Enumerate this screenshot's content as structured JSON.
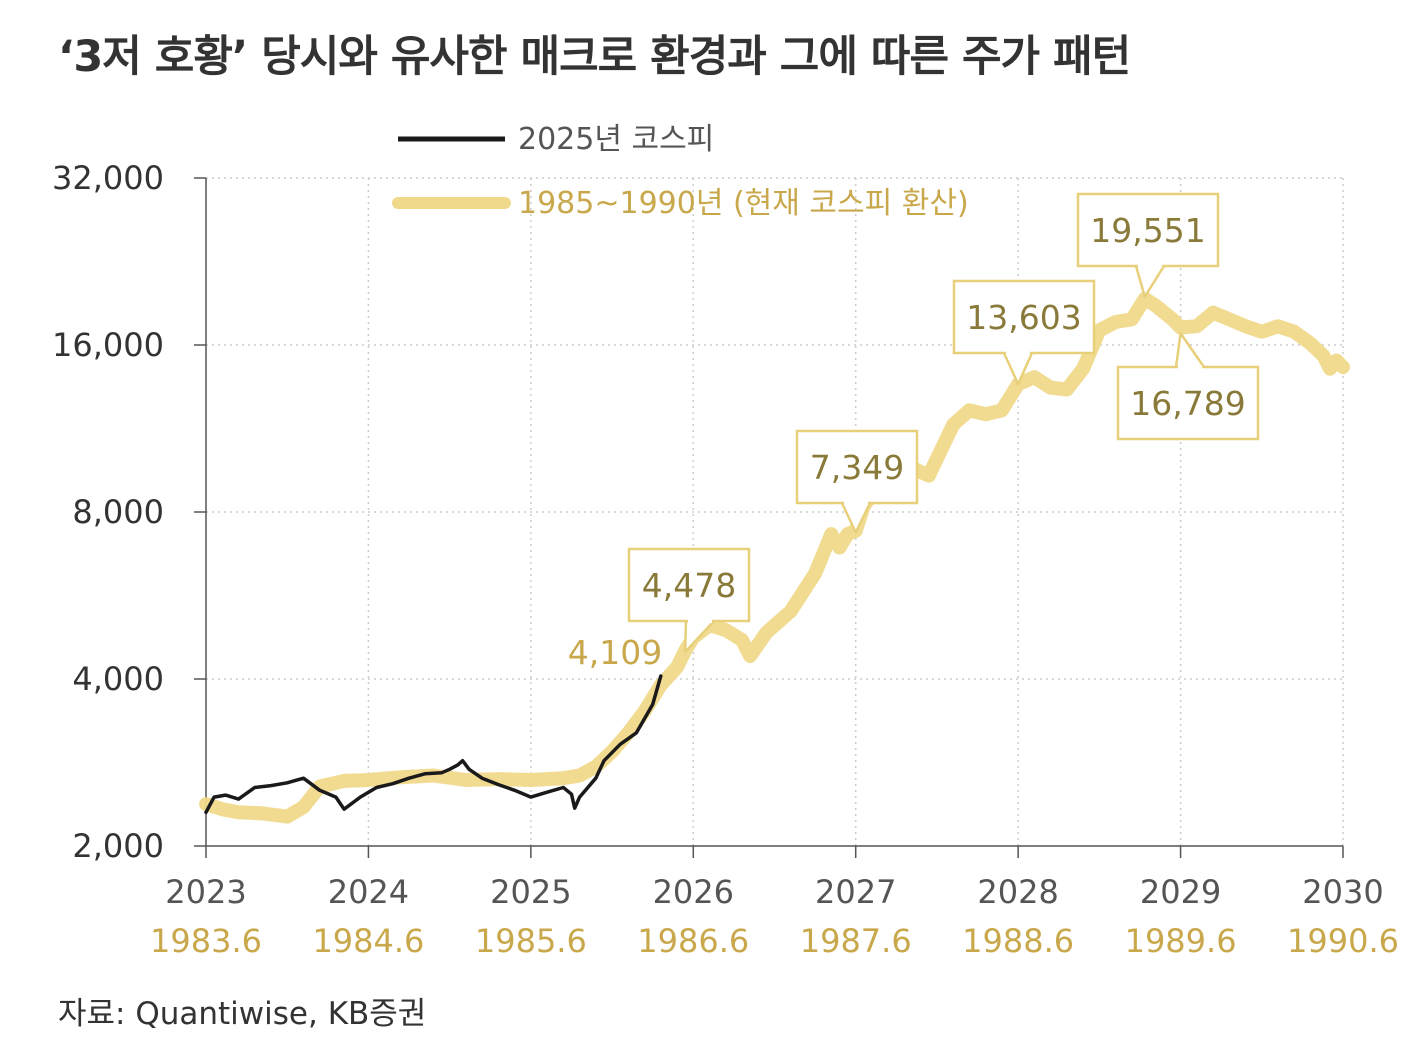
{
  "title": "‘3저 호황’ 당시와 유사한 매크로 환경과 그에 따른 주가 패턴",
  "source": "자료: Quantiwise, KB증권",
  "colors": {
    "kospi2025": "#1a1a1a",
    "kospi1985": "#f0d98a",
    "accent_text": "#c9a84c",
    "box_border": "#e8cf7a",
    "box_text": "#8a7a3a",
    "grid": "#cccccc",
    "axis": "#555555"
  },
  "chart_data": {
    "type": "line",
    "title": "‘3저 호황’ 당시와 유사한 매크로 환경과 그에 따른 주가 패턴",
    "y_scale": "log",
    "ylim": [
      2000,
      32000
    ],
    "xlim": [
      2023,
      2030
    ],
    "y_ticks": [
      "2,000",
      "4,000",
      "8,000",
      "16,000",
      "32,000"
    ],
    "y_tick_values": [
      2000,
      4000,
      8000,
      16000,
      32000
    ],
    "x_ticks": [
      "2023",
      "2024",
      "2025",
      "2026",
      "2027",
      "2028",
      "2029",
      "2030"
    ],
    "x_tick_values": [
      2023,
      2024,
      2025,
      2026,
      2027,
      2028,
      2029,
      2030
    ],
    "x_ticks_secondary": [
      "1983.6",
      "1984.6",
      "1985.6",
      "1986.6",
      "1987.6",
      "1988.6",
      "1989.6",
      "1990.6"
    ],
    "grid": true,
    "legend_position": "top-left",
    "series": [
      {
        "name": "2025년 코스피",
        "color": "#1a1a1a",
        "points": [
          [
            2023.0,
            2300
          ],
          [
            2023.05,
            2450
          ],
          [
            2023.12,
            2470
          ],
          [
            2023.2,
            2430
          ],
          [
            2023.3,
            2550
          ],
          [
            2023.4,
            2570
          ],
          [
            2023.5,
            2600
          ],
          [
            2023.6,
            2650
          ],
          [
            2023.7,
            2520
          ],
          [
            2023.8,
            2450
          ],
          [
            2023.85,
            2330
          ],
          [
            2023.95,
            2450
          ],
          [
            2024.05,
            2550
          ],
          [
            2024.15,
            2590
          ],
          [
            2024.25,
            2650
          ],
          [
            2024.35,
            2700
          ],
          [
            2024.45,
            2710
          ],
          [
            2024.5,
            2750
          ],
          [
            2024.55,
            2800
          ],
          [
            2024.58,
            2850
          ],
          [
            2024.62,
            2750
          ],
          [
            2024.7,
            2650
          ],
          [
            2024.8,
            2580
          ],
          [
            2024.9,
            2520
          ],
          [
            2025.0,
            2450
          ],
          [
            2025.1,
            2500
          ],
          [
            2025.2,
            2550
          ],
          [
            2025.25,
            2480
          ],
          [
            2025.27,
            2340
          ],
          [
            2025.3,
            2450
          ],
          [
            2025.4,
            2650
          ],
          [
            2025.45,
            2850
          ],
          [
            2025.55,
            3050
          ],
          [
            2025.65,
            3200
          ],
          [
            2025.75,
            3600
          ],
          [
            2025.8,
            4050
          ]
        ]
      },
      {
        "name": "1985~1990년 (현재 코스피 환산)",
        "color": "#f0d98a",
        "points": [
          [
            2023.0,
            2380
          ],
          [
            2023.1,
            2330
          ],
          [
            2023.2,
            2300
          ],
          [
            2023.35,
            2290
          ],
          [
            2023.5,
            2260
          ],
          [
            2023.6,
            2350
          ],
          [
            2023.7,
            2560
          ],
          [
            2023.85,
            2620
          ],
          [
            2024.0,
            2630
          ],
          [
            2024.2,
            2660
          ],
          [
            2024.4,
            2680
          ],
          [
            2024.6,
            2630
          ],
          [
            2024.8,
            2640
          ],
          [
            2025.0,
            2630
          ],
          [
            2025.2,
            2650
          ],
          [
            2025.3,
            2680
          ],
          [
            2025.4,
            2780
          ],
          [
            2025.5,
            2960
          ],
          [
            2025.6,
            3200
          ],
          [
            2025.7,
            3500
          ],
          [
            2025.8,
            3900
          ],
          [
            2025.9,
            4200
          ],
          [
            2025.95,
            4500
          ],
          [
            2026.0,
            4750
          ],
          [
            2026.1,
            5000
          ],
          [
            2026.2,
            4900
          ],
          [
            2026.3,
            4700
          ],
          [
            2026.35,
            4400
          ],
          [
            2026.45,
            4850
          ],
          [
            2026.6,
            5300
          ],
          [
            2026.75,
            6200
          ],
          [
            2026.85,
            7300
          ],
          [
            2026.9,
            6900
          ],
          [
            2026.95,
            7300
          ],
          [
            2027.0,
            7400
          ],
          [
            2027.05,
            8200
          ],
          [
            2027.15,
            9000
          ],
          [
            2027.25,
            9500
          ],
          [
            2027.35,
            9600
          ],
          [
            2027.45,
            9300
          ],
          [
            2027.6,
            11500
          ],
          [
            2027.7,
            12200
          ],
          [
            2027.8,
            12000
          ],
          [
            2027.9,
            12200
          ],
          [
            2028.0,
            13600
          ],
          [
            2028.1,
            14000
          ],
          [
            2028.2,
            13400
          ],
          [
            2028.3,
            13300
          ],
          [
            2028.4,
            14500
          ],
          [
            2028.5,
            17000
          ],
          [
            2028.6,
            17600
          ],
          [
            2028.7,
            17800
          ],
          [
            2028.78,
            19400
          ],
          [
            2028.85,
            18800
          ],
          [
            2028.95,
            17800
          ],
          [
            2029.0,
            17200
          ],
          [
            2029.1,
            17300
          ],
          [
            2029.2,
            18300
          ],
          [
            2029.3,
            17800
          ],
          [
            2029.4,
            17300
          ],
          [
            2029.5,
            16900
          ],
          [
            2029.6,
            17300
          ],
          [
            2029.7,
            16900
          ],
          [
            2029.8,
            16100
          ],
          [
            2029.88,
            15300
          ],
          [
            2029.92,
            14500
          ],
          [
            2029.96,
            15000
          ],
          [
            2030.0,
            14600
          ]
        ]
      }
    ],
    "labels": [
      {
        "text": "4,109",
        "boxed": false,
        "x": 2025.8,
        "y": 4109
      },
      {
        "text": "4,478",
        "boxed": true,
        "x": 2025.95,
        "y": 4478
      },
      {
        "text": "7,349",
        "boxed": true,
        "x": 2027.0,
        "y": 7349
      },
      {
        "text": "13,603",
        "boxed": true,
        "x": 2028.0,
        "y": 13603
      },
      {
        "text": "19,551",
        "boxed": true,
        "x": 2028.78,
        "y": 19551
      },
      {
        "text": "16,789",
        "boxed": true,
        "x": 2029.0,
        "y": 16789
      }
    ]
  }
}
